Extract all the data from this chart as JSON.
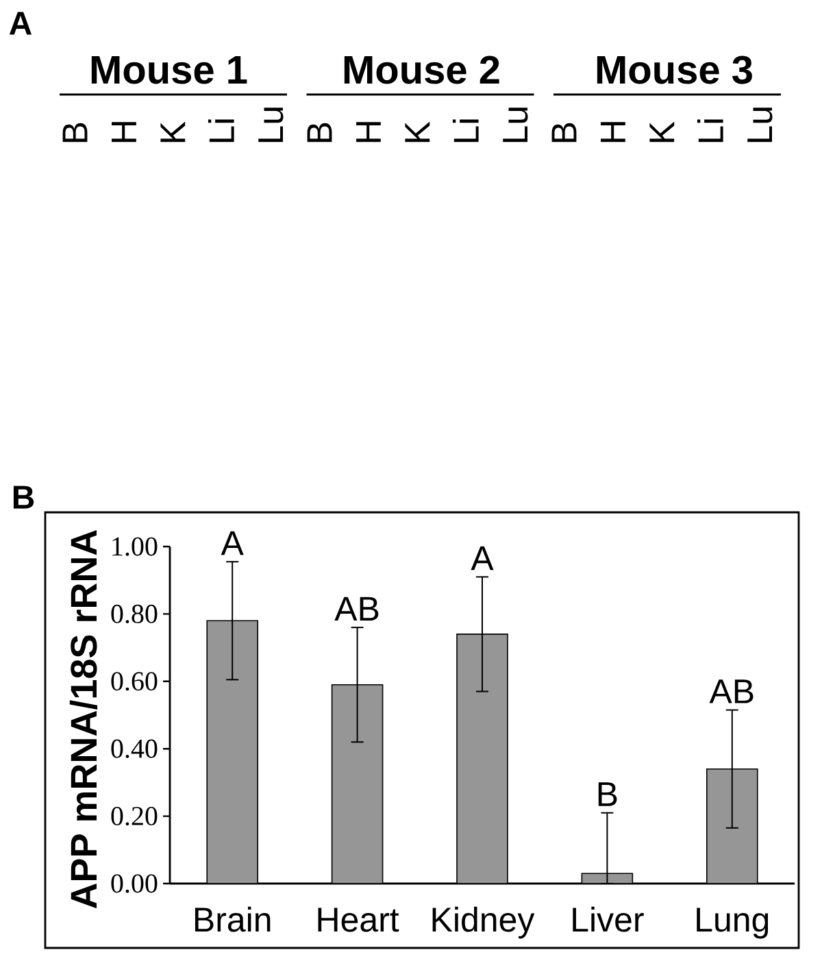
{
  "chart_data": [
    {
      "type": "other",
      "title": "A",
      "annotations": [
        "Mouse 1",
        "B",
        "H",
        "K",
        "Li",
        "Lu",
        "Mouse 2",
        "B",
        "H",
        "K",
        "Li",
        "Lu",
        "Mouse 3",
        "B",
        "H",
        "K",
        "Li",
        "Lu"
      ]
    },
    {
      "type": "bar",
      "title": "B",
      "ylabel": "APP mRNA/18S rRNA",
      "categories": [
        "Brain",
        "Heart",
        "Kidney",
        "Liver",
        "Lung"
      ],
      "values": [
        0.78,
        0.59,
        0.74,
        0.03,
        0.34
      ],
      "errors": [
        0.175,
        0.17,
        0.17,
        [
          0.0,
          0.21
        ],
        0.175
      ],
      "color": "#969696",
      "ylim": [
        0,
        1
      ],
      "yticks": [
        {
          "value": 0,
          "label": "0.00"
        },
        {
          "value": 0.2,
          "label": "0.20"
        },
        {
          "value": 0.4,
          "label": "0.40"
        },
        {
          "value": 0.6,
          "label": "0.60"
        },
        {
          "value": 0.8,
          "label": "0.80"
        },
        {
          "value": 1,
          "label": "1.00"
        }
      ],
      "annotations": [
        {
          "text": "A",
          "x": "Brain",
          "y": 0.955
        },
        {
          "text": "AB",
          "x": "Heart",
          "y": 0.76
        },
        {
          "text": "A",
          "x": "Kidney",
          "y": 0.91
        },
        {
          "text": "B",
          "x": "Liver",
          "y": 0.21
        },
        {
          "text": "AB",
          "x": "Lung",
          "y": 0.515
        }
      ]
    }
  ]
}
